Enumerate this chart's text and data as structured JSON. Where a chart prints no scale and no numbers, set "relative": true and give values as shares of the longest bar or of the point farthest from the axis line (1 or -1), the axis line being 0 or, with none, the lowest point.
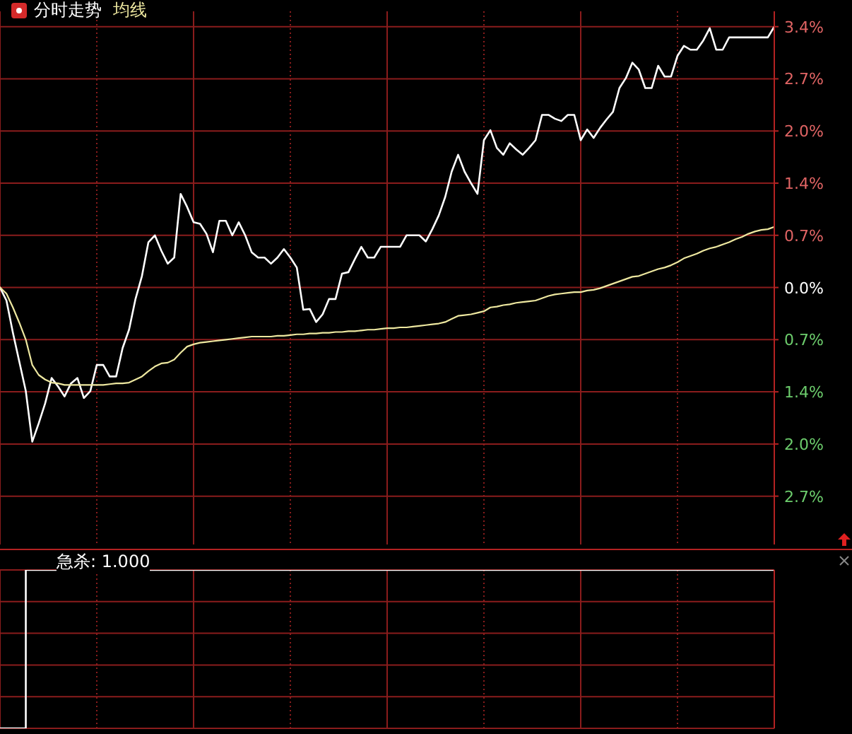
{
  "chart_data": [
    {
      "type": "line",
      "title": "分时走势",
      "categories": [
        null,
        null,
        null,
        null,
        null,
        null,
        null,
        null,
        null,
        null,
        null,
        null,
        null,
        null,
        null,
        null,
        null,
        null,
        null,
        null,
        null,
        null,
        null,
        null,
        null,
        null,
        null,
        null,
        null,
        null,
        null,
        null,
        null,
        null,
        null,
        null,
        null,
        null,
        null,
        null,
        null,
        null,
        null,
        null,
        null,
        null,
        null,
        null,
        null,
        null,
        null,
        null,
        null,
        null,
        null,
        null,
        null,
        null,
        null,
        null,
        null,
        null,
        null,
        null,
        null,
        null,
        null,
        null,
        null,
        null,
        null,
        null,
        null,
        null,
        null,
        null,
        null,
        null,
        null,
        null,
        null,
        null,
        null,
        null,
        null,
        null,
        null,
        null,
        null,
        null,
        null,
        null,
        null,
        null,
        null,
        null,
        null,
        null,
        null,
        null,
        null,
        null,
        null,
        null,
        null,
        null,
        null,
        null,
        null,
        null,
        null,
        null,
        null,
        null,
        null,
        null,
        null,
        null,
        null,
        null,
        null
      ],
      "series": [
        {
          "color": "#ffffff",
          "values": [
            0.0,
            -0.17,
            -0.59,
            -0.97,
            -1.35,
            -2.01,
            -1.77,
            -1.51,
            -1.18,
            -1.29,
            -1.42,
            -1.25,
            -1.18,
            -1.44,
            -1.35,
            -1.01,
            -1.01,
            -1.16,
            -1.16,
            -0.79,
            -0.55,
            -0.15,
            0.15,
            0.59,
            0.68,
            0.48,
            0.31,
            0.39,
            1.22,
            1.05,
            0.85,
            0.83,
            0.7,
            0.46,
            0.87,
            0.87,
            0.68,
            0.85,
            0.68,
            0.46,
            0.39,
            0.39,
            0.31,
            0.39,
            0.5,
            0.39,
            0.26,
            -0.29,
            -0.28,
            -0.45,
            -0.35,
            -0.15,
            -0.15,
            0.18,
            0.2,
            0.37,
            0.53,
            0.39,
            0.39,
            0.53,
            0.53,
            0.53,
            0.53,
            0.68,
            0.68,
            0.68,
            0.6,
            0.76,
            0.94,
            1.18,
            1.51,
            1.73,
            1.51,
            1.36,
            1.22,
            1.92,
            2.05,
            1.82,
            1.73,
            1.88,
            1.8,
            1.73,
            1.82,
            1.92,
            2.25,
            2.25,
            2.2,
            2.17,
            2.25,
            2.25,
            1.92,
            2.06,
            1.95,
            2.08,
            2.19,
            2.29,
            2.6,
            2.73,
            2.93,
            2.84,
            2.6,
            2.6,
            2.89,
            2.75,
            2.75,
            3.02,
            3.15,
            3.1,
            3.1,
            3.22,
            3.38,
            3.1,
            3.1,
            3.26,
            3.26,
            3.26,
            3.26,
            3.26,
            3.26,
            3.26,
            3.4
          ]
        },
        {
          "name": "均线",
          "color": "#eee8a0",
          "values": [
            0.0,
            -0.08,
            -0.26,
            -0.46,
            -0.68,
            -1.01,
            -1.14,
            -1.2,
            -1.24,
            -1.25,
            -1.27,
            -1.27,
            -1.27,
            -1.27,
            -1.27,
            -1.27,
            -1.27,
            -1.26,
            -1.25,
            -1.25,
            -1.24,
            -1.2,
            -1.16,
            -1.09,
            -1.03,
            -0.99,
            -0.98,
            -0.94,
            -0.85,
            -0.77,
            -0.74,
            -0.72,
            -0.71,
            -0.7,
            -0.69,
            -0.68,
            -0.67,
            -0.66,
            -0.65,
            -0.64,
            -0.64,
            -0.64,
            -0.64,
            -0.63,
            -0.63,
            -0.62,
            -0.61,
            -0.61,
            -0.6,
            -0.6,
            -0.59,
            -0.59,
            -0.58,
            -0.58,
            -0.57,
            -0.57,
            -0.56,
            -0.55,
            -0.55,
            -0.54,
            -0.53,
            -0.53,
            -0.52,
            -0.52,
            -0.51,
            -0.5,
            -0.49,
            -0.48,
            -0.47,
            -0.45,
            -0.41,
            -0.37,
            -0.36,
            -0.35,
            -0.33,
            -0.31,
            -0.26,
            -0.25,
            -0.23,
            -0.22,
            -0.2,
            -0.19,
            -0.18,
            -0.17,
            -0.14,
            -0.11,
            -0.09,
            -0.08,
            -0.07,
            -0.06,
            -0.06,
            -0.04,
            -0.03,
            -0.01,
            0.02,
            0.05,
            0.08,
            0.11,
            0.14,
            0.15,
            0.18,
            0.21,
            0.24,
            0.26,
            0.29,
            0.33,
            0.38,
            0.41,
            0.44,
            0.48,
            0.51,
            0.53,
            0.56,
            0.59,
            0.63,
            0.66,
            0.7,
            0.73,
            0.75,
            0.76,
            0.79
          ]
        }
      ],
      "ylim": [
        -3.35,
        3.6
      ],
      "yticks": [
        {
          "value": -2.72,
          "label": "2.7%"
        },
        {
          "value": -2.04,
          "label": "2.0%"
        },
        {
          "value": -1.36,
          "label": "1.4%"
        },
        {
          "value": -0.68,
          "label": "0.7%"
        },
        {
          "value": 0,
          "label": "0.0%"
        },
        {
          "value": 0.68,
          "label": "0.7%"
        },
        {
          "value": 1.36,
          "label": "1.4%"
        },
        {
          "value": 2.04,
          "label": "2.0%"
        },
        {
          "value": 2.72,
          "label": "2.7%"
        },
        {
          "value": 3.4,
          "label": "3.4%"
        }
      ],
      "grid": true,
      "legend": "top left",
      "tick_labels": "y"
    },
    {
      "type": "step",
      "title": "急杀: 1.000",
      "categories": [
        null,
        null,
        null,
        null,
        null,
        null,
        null,
        null,
        null,
        null,
        null,
        null,
        null,
        null,
        null,
        null,
        null,
        null,
        null,
        null,
        null,
        null,
        null,
        null,
        null,
        null,
        null,
        null,
        null,
        null,
        null,
        null,
        null,
        null,
        null,
        null,
        null,
        null,
        null,
        null,
        null,
        null,
        null,
        null,
        null,
        null,
        null,
        null,
        null,
        null,
        null,
        null,
        null,
        null,
        null,
        null,
        null,
        null,
        null,
        null,
        null,
        null,
        null,
        null,
        null,
        null,
        null,
        null,
        null,
        null,
        null,
        null,
        null,
        null,
        null,
        null,
        null,
        null,
        null,
        null,
        null,
        null,
        null,
        null,
        null,
        null,
        null,
        null,
        null,
        null,
        null,
        null,
        null,
        null,
        null,
        null,
        null,
        null,
        null,
        null,
        null,
        null,
        null,
        null,
        null,
        null,
        null,
        null,
        null,
        null,
        null,
        null,
        null,
        null,
        null,
        null,
        null,
        null,
        null,
        null,
        null
      ],
      "values": [
        0,
        0,
        0,
        0,
        1,
        1,
        1,
        1,
        1,
        1,
        1,
        1,
        1,
        1,
        1,
        1,
        1,
        1,
        1,
        1,
        1,
        1,
        1,
        1,
        1,
        1,
        1,
        1,
        1,
        1,
        1,
        1,
        1,
        1,
        1,
        1,
        1,
        1,
        1,
        1,
        1,
        1,
        1,
        1,
        1,
        1,
        1,
        1,
        1,
        1,
        1,
        1,
        1,
        1,
        1,
        1,
        1,
        1,
        1,
        1,
        1,
        1,
        1,
        1,
        1,
        1,
        1,
        1,
        1,
        1,
        1,
        1,
        1,
        1,
        1,
        1,
        1,
        1,
        1,
        1,
        1,
        1,
        1,
        1,
        1,
        1,
        1,
        1,
        1,
        1,
        1,
        1,
        1,
        1,
        1,
        1,
        1,
        1,
        1,
        1,
        1,
        1,
        1,
        1,
        1,
        1,
        1,
        1,
        1,
        1,
        1,
        1,
        1,
        1,
        1,
        1,
        1,
        1,
        1,
        1,
        1
      ],
      "color": "#ffffff",
      "relative": true,
      "grid": true,
      "tick_labels": false
    }
  ]
}
